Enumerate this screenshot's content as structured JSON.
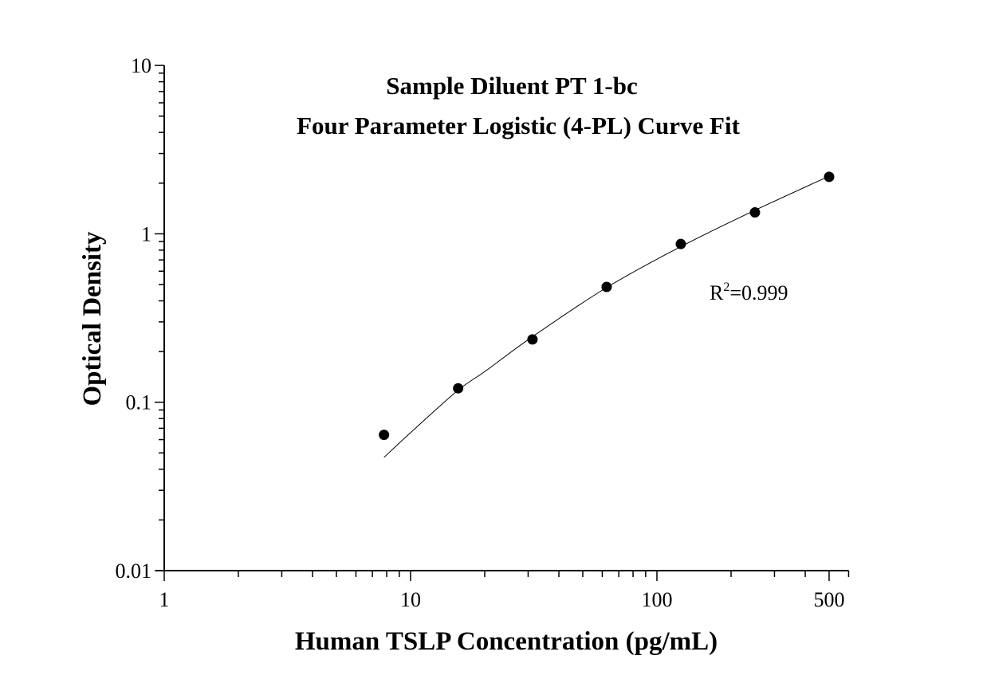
{
  "chart_data": {
    "type": "scatter",
    "title": [
      "Sample Diluent PT 1-bc",
      "Four Parameter Logistic (4-PL) Curve Fit"
    ],
    "xlabel": "Human TSLP Concentration (pg/mL)",
    "ylabel": "Optical Density",
    "xscale": "log",
    "yscale": "log",
    "xlim": [
      1,
      600
    ],
    "ylim": [
      0.01,
      10
    ],
    "xticks": [
      1,
      10,
      100,
      500
    ],
    "xtick_labels": [
      "1",
      "10",
      "100",
      "500"
    ],
    "yticks": [
      0.01,
      0.1,
      1,
      10
    ],
    "ytick_labels": [
      "0.01",
      "0.1",
      "1",
      "10"
    ],
    "grid": false,
    "points": {
      "x": [
        7.8,
        15.6,
        31.25,
        62.5,
        125,
        250,
        500
      ],
      "y": [
        0.064,
        0.121,
        0.236,
        0.484,
        0.87,
        1.34,
        2.18
      ]
    },
    "fit_curve": {
      "x": [
        7.8,
        10,
        15.6,
        20,
        31.25,
        62.5,
        125,
        250,
        500
      ],
      "y": [
        0.047,
        0.066,
        0.118,
        0.152,
        0.245,
        0.48,
        0.84,
        1.38,
        2.2
      ]
    },
    "annotation": {
      "base": "R",
      "sup": "2",
      "rest": "=0.999"
    },
    "colors": {
      "points": "#000000",
      "curve": "#000000",
      "axes": "#000000"
    }
  }
}
